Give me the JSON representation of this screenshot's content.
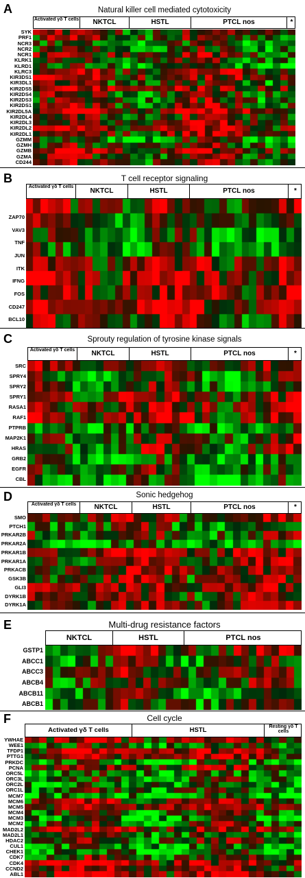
{
  "panels": [
    {
      "letter": "A",
      "title": "Natural killer cell mediated cytotoxicity",
      "groups": [
        "Activated γδ T cells",
        "NKTCL",
        "HSTL",
        "PTCL nos",
        "*"
      ],
      "genes": [
        "SYK",
        "PRF1",
        "NCR3",
        "NCR2",
        "NCR1",
        "KLRK1",
        "KLRD1",
        "KLRC3",
        "KIR3DS1",
        "KIR3DL1",
        "KIR2DS5",
        "KIR2DS4",
        "KIR2DS3",
        "KIR2DS1",
        "KIR2DL5A",
        "KIR2DL4",
        "KIR2DL3",
        "KIR2DL2",
        "KIR2DL1",
        "GZMM",
        "GZMH",
        "GZMB",
        "GZMA",
        "CD244"
      ]
    },
    {
      "letter": "B",
      "title": "T cell receptor signaling",
      "groups": [
        "Activated γδ T cells",
        "NKTCL",
        "HSTL",
        "PTCL nos",
        "*"
      ],
      "genes": [
        "ZAP70",
        "VAV3",
        "TNF",
        "JUN",
        "ITK",
        "IFNG",
        "FOS",
        "CD247",
        "BCL10"
      ]
    },
    {
      "letter": "C",
      "title": "Sprouty regulation of tyrosine kinase signals",
      "groups": [
        "Activated γδ T cells",
        "NKTCL",
        "HSTL",
        "PTCL nos",
        "*"
      ],
      "genes": [
        "SRC",
        "SPRY4",
        "SPRY2",
        "SPRY1",
        "RASA1",
        "RAF1",
        "PTPRB",
        "MAP2K1",
        "HRAS",
        "GRB2",
        "EGFR",
        "CBL"
      ]
    },
    {
      "letter": "D",
      "title": "Sonic hedgehog",
      "groups": [
        "Activated γδ T cells",
        "NKTCL",
        "HSTL",
        "PTCL nos",
        "*"
      ],
      "genes": [
        "SMO",
        "PTCH1",
        "PRKAR2B",
        "PRKAR2A",
        "PRKAR1B",
        "PRKAR1A",
        "PRKACB",
        "GSK3B",
        "GLI3",
        "DYRK1B",
        "DYRK1A"
      ]
    },
    {
      "letter": "E",
      "title": "Multi-drug resistance factors",
      "groups": [
        "NKTCL",
        "HSTL",
        "PTCL nos"
      ],
      "genes": [
        "GSTP1",
        "ABCC1",
        "ABCC3",
        "ABCB4",
        "ABCB11",
        "ABCB1"
      ]
    },
    {
      "letter": "F",
      "title": "Cell cycle",
      "groups": [
        "Activated γδ T cells",
        "HSTL",
        "Resting γδ T cells"
      ],
      "genes": [
        "YWHAE",
        "WEE1",
        "TFDP1",
        "PTTG1",
        "PRKDC",
        "PCNA",
        "ORC5L",
        "ORC3L",
        "ORC2L",
        "ORC1L",
        "MCM7",
        "MCM6",
        "MCM5",
        "MCM4",
        "MCM3",
        "MCM2",
        "MAD2L2",
        "MAD2L1",
        "HDAC2",
        "CUL1",
        "CHEK1",
        "CDK7",
        "CDK4",
        "CCND2",
        "ABL1"
      ]
    }
  ],
  "colors": {
    "high": "#ff0000",
    "low": "#00ff00",
    "mid": "#000000"
  }
}
